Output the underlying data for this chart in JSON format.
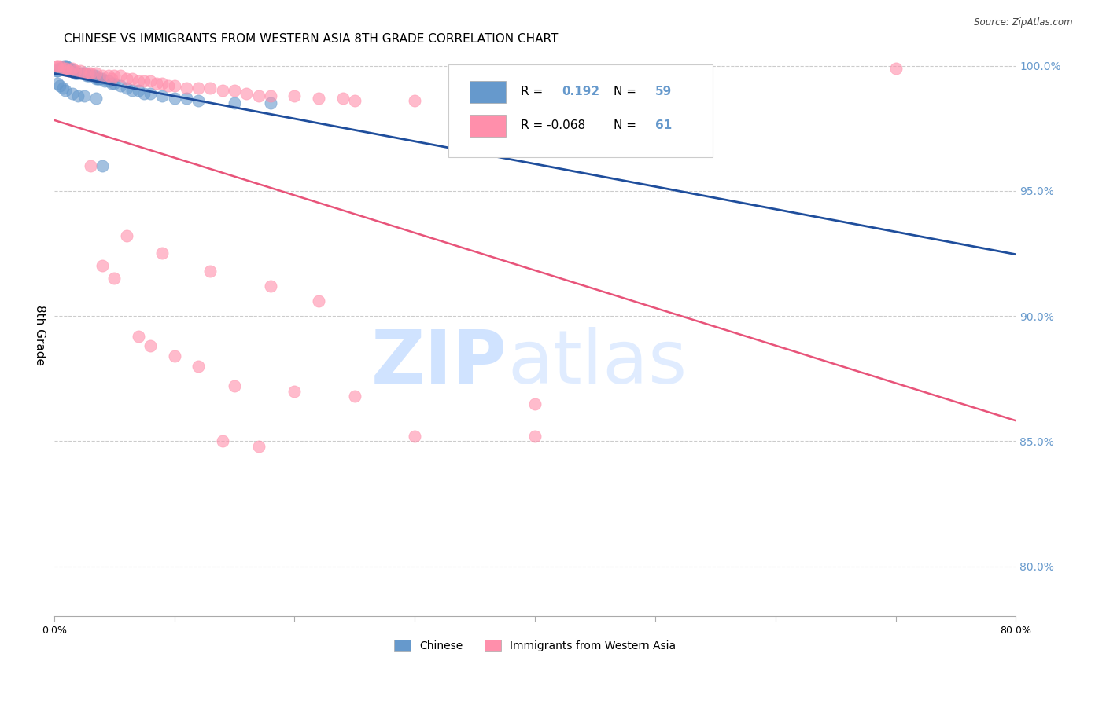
{
  "title": "CHINESE VS IMMIGRANTS FROM WESTERN ASIA 8TH GRADE CORRELATION CHART",
  "source": "Source: ZipAtlas.com",
  "ylabel": "8th Grade",
  "xmin": 0.0,
  "xmax": 0.8,
  "ymin": 0.78,
  "ymax": 1.005,
  "yticks": [
    0.8,
    0.85,
    0.9,
    0.95,
    1.0
  ],
  "ytick_labels": [
    "80.0%",
    "85.0%",
    "90.0%",
    "95.0%",
    "100.0%"
  ],
  "xticks": [
    0.0,
    0.1,
    0.2,
    0.3,
    0.4,
    0.5,
    0.6,
    0.7,
    0.8
  ],
  "xtick_labels": [
    "0.0%",
    "",
    "",
    "",
    "",
    "",
    "",
    "",
    "80.0%"
  ],
  "blue_R": 0.192,
  "blue_N": 59,
  "pink_R": -0.068,
  "pink_N": 61,
  "blue_color": "#6699CC",
  "pink_color": "#FF8FAB",
  "blue_line_color": "#1F4E9C",
  "pink_line_color": "#E8547A",
  "blue_scatter": [
    [
      0.002,
      0.998
    ],
    [
      0.003,
      0.998
    ],
    [
      0.004,
      0.999
    ],
    [
      0.005,
      0.999
    ],
    [
      0.006,
      0.999
    ],
    [
      0.007,
      0.999
    ],
    [
      0.008,
      1.0
    ],
    [
      0.009,
      1.0
    ],
    [
      0.01,
      1.0
    ],
    [
      0.011,
      0.999
    ],
    [
      0.012,
      0.999
    ],
    [
      0.013,
      0.999
    ],
    [
      0.014,
      0.998
    ],
    [
      0.015,
      0.998
    ],
    [
      0.016,
      0.998
    ],
    [
      0.017,
      0.997
    ],
    [
      0.018,
      0.997
    ],
    [
      0.019,
      0.997
    ],
    [
      0.02,
      0.997
    ],
    [
      0.022,
      0.997
    ],
    [
      0.024,
      0.997
    ],
    [
      0.025,
      0.997
    ],
    [
      0.026,
      0.997
    ],
    [
      0.027,
      0.996
    ],
    [
      0.028,
      0.996
    ],
    [
      0.029,
      0.996
    ],
    [
      0.03,
      0.996
    ],
    [
      0.032,
      0.996
    ],
    [
      0.034,
      0.996
    ],
    [
      0.035,
      0.995
    ],
    [
      0.036,
      0.995
    ],
    [
      0.037,
      0.995
    ],
    [
      0.038,
      0.995
    ],
    [
      0.04,
      0.995
    ],
    [
      0.042,
      0.994
    ],
    [
      0.045,
      0.994
    ],
    [
      0.048,
      0.993
    ],
    [
      0.05,
      0.993
    ],
    [
      0.055,
      0.992
    ],
    [
      0.06,
      0.991
    ],
    [
      0.065,
      0.99
    ],
    [
      0.07,
      0.99
    ],
    [
      0.075,
      0.989
    ],
    [
      0.08,
      0.989
    ],
    [
      0.09,
      0.988
    ],
    [
      0.1,
      0.987
    ],
    [
      0.11,
      0.987
    ],
    [
      0.12,
      0.986
    ],
    [
      0.15,
      0.985
    ],
    [
      0.18,
      0.985
    ],
    [
      0.003,
      0.993
    ],
    [
      0.005,
      0.992
    ],
    [
      0.007,
      0.991
    ],
    [
      0.009,
      0.99
    ],
    [
      0.015,
      0.989
    ],
    [
      0.02,
      0.988
    ],
    [
      0.025,
      0.988
    ],
    [
      0.035,
      0.987
    ],
    [
      0.04,
      0.96
    ]
  ],
  "pink_scatter": [
    [
      0.002,
      1.0
    ],
    [
      0.003,
      1.0
    ],
    [
      0.005,
      1.0
    ],
    [
      0.01,
      0.999
    ],
    [
      0.015,
      0.999
    ],
    [
      0.008,
      0.999
    ],
    [
      0.012,
      0.998
    ],
    [
      0.018,
      0.998
    ],
    [
      0.022,
      0.998
    ],
    [
      0.025,
      0.997
    ],
    [
      0.03,
      0.997
    ],
    [
      0.028,
      0.997
    ],
    [
      0.035,
      0.997
    ],
    [
      0.04,
      0.996
    ],
    [
      0.045,
      0.996
    ],
    [
      0.05,
      0.996
    ],
    [
      0.055,
      0.996
    ],
    [
      0.048,
      0.995
    ],
    [
      0.06,
      0.995
    ],
    [
      0.065,
      0.995
    ],
    [
      0.07,
      0.994
    ],
    [
      0.075,
      0.994
    ],
    [
      0.08,
      0.994
    ],
    [
      0.085,
      0.993
    ],
    [
      0.09,
      0.993
    ],
    [
      0.095,
      0.992
    ],
    [
      0.1,
      0.992
    ],
    [
      0.11,
      0.991
    ],
    [
      0.12,
      0.991
    ],
    [
      0.13,
      0.991
    ],
    [
      0.14,
      0.99
    ],
    [
      0.15,
      0.99
    ],
    [
      0.16,
      0.989
    ],
    [
      0.17,
      0.988
    ],
    [
      0.18,
      0.988
    ],
    [
      0.2,
      0.988
    ],
    [
      0.22,
      0.987
    ],
    [
      0.24,
      0.987
    ],
    [
      0.25,
      0.986
    ],
    [
      0.3,
      0.986
    ],
    [
      0.04,
      0.92
    ],
    [
      0.05,
      0.915
    ],
    [
      0.07,
      0.892
    ],
    [
      0.08,
      0.888
    ],
    [
      0.1,
      0.884
    ],
    [
      0.12,
      0.88
    ],
    [
      0.15,
      0.872
    ],
    [
      0.2,
      0.87
    ],
    [
      0.25,
      0.868
    ],
    [
      0.4,
      0.865
    ],
    [
      0.06,
      0.932
    ],
    [
      0.09,
      0.925
    ],
    [
      0.13,
      0.918
    ],
    [
      0.18,
      0.912
    ],
    [
      0.22,
      0.906
    ],
    [
      0.14,
      0.85
    ],
    [
      0.17,
      0.848
    ],
    [
      0.3,
      0.852
    ],
    [
      0.4,
      0.852
    ],
    [
      0.7,
      0.999
    ],
    [
      0.03,
      0.96
    ]
  ],
  "grid_color": "#CCCCCC",
  "right_axis_color": "#6699CC",
  "title_fontsize": 11,
  "axis_label_fontsize": 10,
  "tick_fontsize": 9
}
